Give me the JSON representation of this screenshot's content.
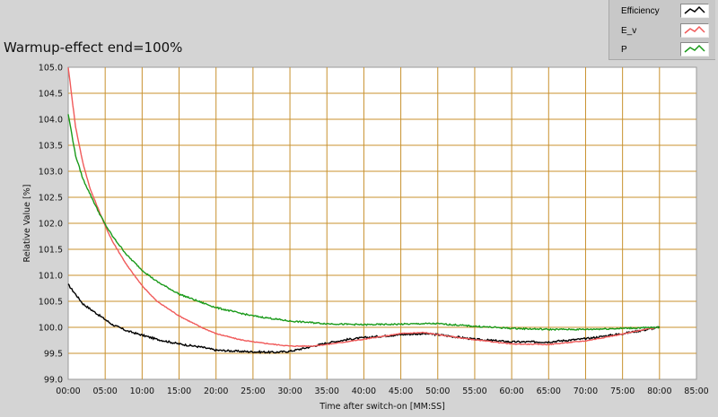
{
  "title": "Warmup-effect end=100%",
  "colors": {
    "grid": "#c8912e",
    "plot_bg": "#ffffff",
    "efficiency": "#000000",
    "e_v": "#f05a5a",
    "p": "#1a9a1a"
  },
  "legend": [
    {
      "label": "Efficiency",
      "color": "#000000"
    },
    {
      "label": "E_v",
      "color": "#f05a5a"
    },
    {
      "label": "P",
      "color": "#1a9a1a"
    }
  ],
  "chart_data": {
    "type": "line",
    "title": "Warmup-effect end=100%",
    "xlabel": "Time after switch-on [MM:SS]",
    "ylabel": "Relative Value [%]",
    "xlim": [
      0,
      85
    ],
    "ylim": [
      99.0,
      105.0
    ],
    "x_ticks": [
      "00:00",
      "05:00",
      "10:00",
      "15:00",
      "20:00",
      "25:00",
      "30:00",
      "35:00",
      "40:00",
      "45:00",
      "50:00",
      "55:00",
      "60:00",
      "65:00",
      "70:00",
      "75:00",
      "80:00",
      "85:00"
    ],
    "y_ticks": [
      "99.0",
      "99.5",
      "100.0",
      "100.5",
      "101.0",
      "101.5",
      "102.0",
      "102.5",
      "103.0",
      "103.5",
      "104.0",
      "104.5",
      "105.0"
    ],
    "grid": true,
    "legend_position": "top-right",
    "series": [
      {
        "name": "Efficiency",
        "x": [
          0,
          2,
          4,
          6,
          8,
          10,
          12,
          15,
          18,
          20,
          23,
          25,
          28,
          30,
          32,
          35,
          38,
          40,
          45,
          48,
          50,
          55,
          60,
          65,
          70,
          75,
          78,
          80
        ],
        "y": [
          100.82,
          100.45,
          100.25,
          100.05,
          99.93,
          99.85,
          99.77,
          99.68,
          99.62,
          99.56,
          99.54,
          99.53,
          99.52,
          99.54,
          99.6,
          99.7,
          99.77,
          99.8,
          99.86,
          99.88,
          99.86,
          99.77,
          99.72,
          99.72,
          99.78,
          99.88,
          99.95,
          100.0
        ]
      },
      {
        "name": "E_v",
        "x": [
          0,
          1,
          2,
          3,
          4,
          5,
          6,
          8,
          10,
          12,
          15,
          18,
          20,
          23,
          25,
          28,
          30,
          33,
          35,
          40,
          45,
          48,
          50,
          55,
          60,
          65,
          70,
          75,
          78,
          80
        ],
        "y": [
          105.0,
          103.85,
          103.15,
          102.65,
          102.3,
          101.95,
          101.65,
          101.18,
          100.8,
          100.5,
          100.22,
          100.0,
          99.88,
          99.77,
          99.72,
          99.67,
          99.64,
          99.64,
          99.67,
          99.77,
          99.88,
          99.9,
          99.86,
          99.76,
          99.68,
          99.67,
          99.74,
          99.87,
          99.96,
          100.0
        ]
      },
      {
        "name": "P",
        "x": [
          0,
          1,
          2,
          3,
          4,
          5,
          6,
          8,
          10,
          12,
          15,
          18,
          20,
          23,
          25,
          30,
          35,
          40,
          45,
          48,
          50,
          55,
          60,
          65,
          70,
          75,
          80
        ],
        "y": [
          104.1,
          103.3,
          102.85,
          102.55,
          102.25,
          101.98,
          101.75,
          101.38,
          101.1,
          100.88,
          100.64,
          100.48,
          100.38,
          100.28,
          100.22,
          100.12,
          100.07,
          100.05,
          100.06,
          100.07,
          100.07,
          100.02,
          99.98,
          99.96,
          99.96,
          99.98,
          100.0
        ]
      }
    ]
  }
}
